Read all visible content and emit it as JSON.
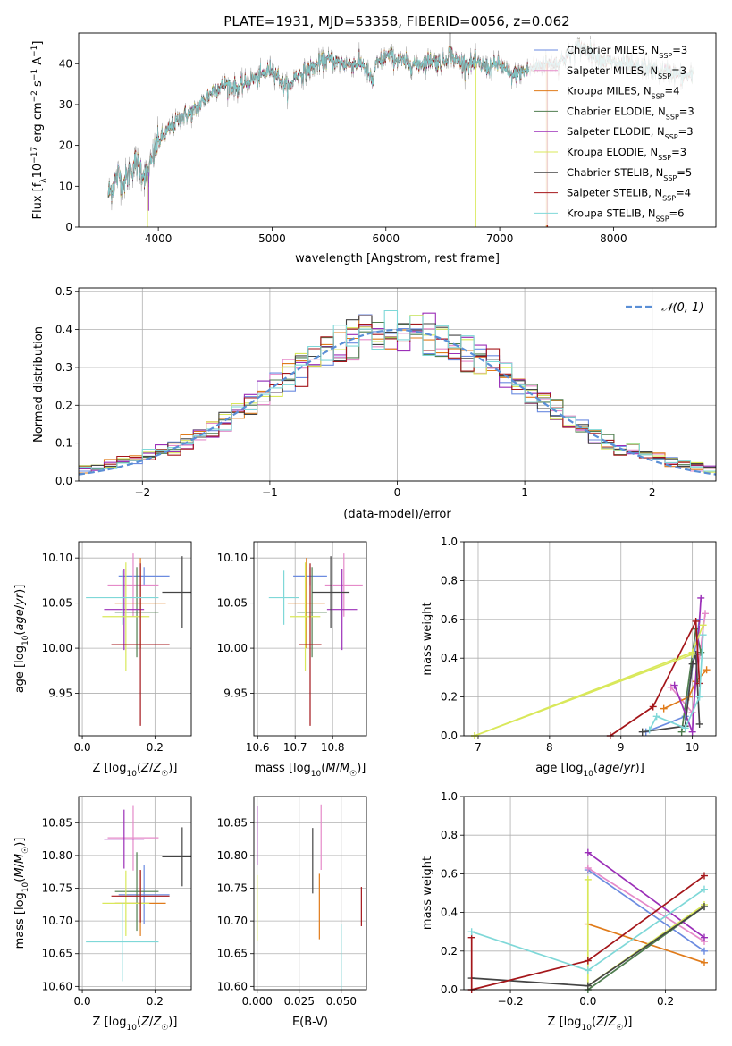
{
  "figure": {
    "title": "PLATE=1931, MJD=53358, FIBERID=0056, z=0.062"
  },
  "colors": {
    "Chabrier MILES": "#6b8be0",
    "Salpeter MILES": "#e58ac9",
    "Kroupa MILES": "#e07b1a",
    "Chabrier ELODIE": "#4f7d4f",
    "Salpeter ELODIE": "#9b2fb8",
    "Kroupa ELODIE": "#d9e85a",
    "Chabrier STELIB": "#444444",
    "Salpeter STELIB": "#a4161a",
    "Kroupa STELIB": "#7fd8d8",
    "gaussian": "#5a8fd6",
    "data": "#aaaaaa"
  },
  "chart_data": [
    {
      "id": "spectrum",
      "type": "line",
      "xlabel": "wavelength [Angstrom, rest frame]",
      "ylabel": "Flux [f_λ 10^-17 erg cm^-2 s^-1 A^-1]",
      "xlim": [
        3300,
        8900
      ],
      "ylim": [
        0,
        47.5
      ],
      "xticks": [
        4000,
        5000,
        6000,
        7000,
        8000
      ],
      "yticks": [
        0,
        10,
        20,
        30,
        40
      ],
      "grid": false,
      "legend_position": "right",
      "anchors": {
        "x": [
          3560,
          3600,
          3650,
          3700,
          3800,
          3850,
          3900,
          3950,
          4000,
          4100,
          4200,
          4300,
          4400,
          4500,
          4600,
          4700,
          4800,
          4900,
          5000,
          5100,
          5150,
          5200,
          5300,
          5400,
          5500,
          5600,
          5700,
          5800,
          5890,
          5900,
          6000,
          6100,
          6200,
          6300,
          6400,
          6500,
          6563,
          6600,
          6700,
          6800,
          6900,
          7000,
          7100,
          7200,
          7300,
          7400,
          7500,
          7600,
          7700,
          7800,
          7900,
          8000,
          8100,
          8200,
          8300,
          8400,
          8500,
          8600,
          8700
        ],
        "y": [
          8,
          10,
          13,
          11,
          16,
          14,
          12,
          17,
          21,
          24,
          27,
          28,
          31,
          34,
          35,
          34,
          36,
          37,
          39,
          35,
          34,
          37,
          38,
          40,
          41,
          40,
          40,
          40,
          35,
          39,
          42,
          41,
          40,
          40,
          41,
          40,
          43,
          41,
          40,
          40,
          39,
          40,
          37,
          38,
          39,
          40,
          40,
          42,
          44,
          43,
          41,
          40,
          40,
          39,
          39,
          38,
          38,
          37,
          37
        ]
      },
      "spikes": [
        {
          "series": "Kroupa ELODIE",
          "x": 3905,
          "to": 0
        },
        {
          "series": "Salpeter ELODIE",
          "x": 3915,
          "to": 4
        },
        {
          "series": "Kroupa ELODIE",
          "x": 6790,
          "to": 0
        },
        {
          "series": "Kroupa MILES",
          "x": 7410,
          "to": 0
        },
        {
          "series": "Salpeter STELIB",
          "x": 7420,
          "to": 0
        }
      ],
      "legend": [
        {
          "label": "Chabrier MILES, N",
          "sub": "SSP",
          "n": "=3",
          "key": "Chabrier MILES"
        },
        {
          "label": "Salpeter MILES, N",
          "sub": "SSP",
          "n": "=3",
          "key": "Salpeter MILES"
        },
        {
          "label": "Kroupa MILES, N",
          "sub": "SSP",
          "n": "=4",
          "key": "Kroupa MILES"
        },
        {
          "label": "Chabrier ELODIE, N",
          "sub": "SSP",
          "n": "=3",
          "key": "Chabrier ELODIE"
        },
        {
          "label": "Salpeter ELODIE, N",
          "sub": "SSP",
          "n": "=3",
          "key": "Salpeter ELODIE"
        },
        {
          "label": "Kroupa ELODIE, N",
          "sub": "SSP",
          "n": "=3",
          "key": "Kroupa ELODIE"
        },
        {
          "label": "Chabrier STELIB, N",
          "sub": "SSP",
          "n": "=5",
          "key": "Chabrier STELIB"
        },
        {
          "label": "Salpeter STELIB, N",
          "sub": "SSP",
          "n": "=4",
          "key": "Salpeter STELIB"
        },
        {
          "label": "Kroupa STELIB, N",
          "sub": "SSP",
          "n": "=6",
          "key": "Kroupa STELIB"
        }
      ]
    },
    {
      "id": "residuals",
      "type": "line",
      "xlabel": "(data-model)/error",
      "ylabel": "Normed distribution",
      "xlim": [
        -2.5,
        2.5
      ],
      "ylim": [
        0,
        0.51
      ],
      "xticks": [
        -2,
        -1,
        0,
        1,
        2
      ],
      "yticks": [
        0.0,
        0.1,
        0.2,
        0.3,
        0.4,
        0.5
      ],
      "grid": true,
      "legend_position": "top-right",
      "gaussian_label": "𝒩(0, 1)",
      "bin_width": 0.1
    },
    {
      "id": "age_vs_Z",
      "type": "scatter",
      "xlabel": "Z [log10(Z/Z☉)]",
      "ylabel": "age [log10(age/yr)]",
      "xlim": [
        -0.01,
        0.3
      ],
      "ylim": [
        9.903,
        10.118
      ],
      "xticks": [
        0.0,
        0.2
      ],
      "yticks": [
        9.95,
        10.0,
        10.05,
        10.1
      ],
      "grid": true,
      "points": [
        {
          "series": "Chabrier MILES",
          "x": 0.17,
          "y": 10.08,
          "xerr": 0.07,
          "yerr": 0.01
        },
        {
          "series": "Salpeter MILES",
          "x": 0.14,
          "y": 10.07,
          "xerr": 0.07,
          "yerr": 0.035
        },
        {
          "series": "Kroupa MILES",
          "x": 0.16,
          "y": 10.05,
          "xerr": 0.07,
          "yerr": 0.05
        },
        {
          "series": "Chabrier ELODIE",
          "x": 0.15,
          "y": 10.04,
          "xerr": 0.06,
          "yerr": 0.05
        },
        {
          "series": "Salpeter ELODIE",
          "x": 0.115,
          "y": 10.043,
          "xerr": 0.055,
          "yerr": 0.045
        },
        {
          "series": "Kroupa ELODIE",
          "x": 0.12,
          "y": 10.035,
          "xerr": 0.065,
          "yerr": 0.06
        },
        {
          "series": "Chabrier STELIB",
          "x": 0.275,
          "y": 10.062,
          "xerr": 0.055,
          "yerr": 0.04
        },
        {
          "series": "Salpeter STELIB",
          "x": 0.16,
          "y": 10.004,
          "xerr": 0.08,
          "yerr": 0.09
        },
        {
          "series": "Kroupa STELIB",
          "x": 0.11,
          "y": 10.056,
          "xerr": 0.1,
          "yerr": 0.03
        }
      ]
    },
    {
      "id": "age_vs_mass",
      "type": "scatter",
      "xlabel": "mass [log10(M/M☉)]",
      "ylabel": "",
      "xlim": [
        10.59,
        10.89
      ],
      "ylim": [
        9.903,
        10.118
      ],
      "xticks": [
        10.6,
        10.7,
        10.8
      ],
      "yticks": [
        9.95,
        10.0,
        10.05,
        10.1
      ],
      "grid": true,
      "points": [
        {
          "series": "Chabrier MILES",
          "x": 10.74,
          "y": 10.08,
          "xerr": 0.045,
          "yerr": 0.01
        },
        {
          "series": "Salpeter MILES",
          "x": 10.83,
          "y": 10.07,
          "xerr": 0.05,
          "yerr": 0.035
        },
        {
          "series": "Kroupa MILES",
          "x": 10.73,
          "y": 10.05,
          "xerr": 0.05,
          "yerr": 0.05
        },
        {
          "series": "Chabrier ELODIE",
          "x": 10.745,
          "y": 10.04,
          "xerr": 0.04,
          "yerr": 0.05
        },
        {
          "series": "Salpeter ELODIE",
          "x": 10.825,
          "y": 10.043,
          "xerr": 0.04,
          "yerr": 0.045
        },
        {
          "series": "Kroupa ELODIE",
          "x": 10.727,
          "y": 10.035,
          "xerr": 0.04,
          "yerr": 0.06
        },
        {
          "series": "Chabrier STELIB",
          "x": 10.795,
          "y": 10.062,
          "xerr": 0.05,
          "yerr": 0.04
        },
        {
          "series": "Salpeter STELIB",
          "x": 10.74,
          "y": 10.004,
          "xerr": 0.03,
          "yerr": 0.09
        },
        {
          "series": "Kroupa STELIB",
          "x": 10.67,
          "y": 10.056,
          "xerr": 0.04,
          "yerr": 0.03
        }
      ]
    },
    {
      "id": "weight_vs_age",
      "type": "line",
      "xlabel": "age [log10(age/yr)]",
      "ylabel": "mass weight",
      "xlim": [
        6.8,
        10.33
      ],
      "ylim": [
        0,
        1
      ],
      "xticks": [
        7,
        8,
        9,
        10
      ],
      "yticks": [
        0.0,
        0.2,
        0.4,
        0.6,
        0.8,
        1.0
      ],
      "grid": true,
      "series": [
        {
          "series": "Chabrier MILES",
          "x": [
            9.35,
            9.9,
            10.1
          ],
          "y": [
            0.02,
            0.1,
            0.6
          ]
        },
        {
          "series": "Salpeter MILES",
          "x": [
            9.7,
            10.0,
            10.18
          ],
          "y": [
            0.25,
            0.12,
            0.63
          ]
        },
        {
          "series": "Kroupa MILES",
          "x": [
            9.6,
            9.95,
            10.05,
            10.2
          ],
          "y": [
            0.14,
            0.2,
            0.28,
            0.34
          ]
        },
        {
          "series": "Chabrier ELODIE",
          "x": [
            9.85,
            10.05,
            10.12
          ],
          "y": [
            0.02,
            0.55,
            0.43
          ]
        },
        {
          "series": "Salpeter ELODIE",
          "x": [
            9.75,
            10.0,
            10.12
          ],
          "y": [
            0.26,
            0.02,
            0.71
          ]
        },
        {
          "series": "Kroupa ELODIE",
          "x": [
            6.95,
            10.0,
            10.15
          ],
          "y": [
            0.0,
            0.43,
            0.57
          ]
        },
        {
          "series": "Chabrier STELIB",
          "x": [
            9.3,
            9.9,
            10.0,
            10.05,
            10.1
          ],
          "y": [
            0.02,
            0.05,
            0.37,
            0.42,
            0.06
          ]
        },
        {
          "series": "Salpeter STELIB",
          "x": [
            8.85,
            9.45,
            10.05,
            10.1
          ],
          "y": [
            0.0,
            0.15,
            0.59,
            0.27
          ]
        },
        {
          "series": "Kroupa STELIB",
          "x": [
            9.4,
            9.5,
            9.9,
            10.1,
            10.15
          ],
          "y": [
            0.03,
            0.1,
            0.04,
            0.2,
            0.52
          ]
        },
        {
          "series": "Kroupa ELODIE",
          "x": [
            6.95,
            10.0
          ],
          "y": [
            0.0,
            0.42
          ]
        }
      ]
    },
    {
      "id": "mass_vs_Z",
      "type": "scatter",
      "xlabel": "Z [log10(Z/Z☉)]",
      "ylabel": "mass [log10(M/M☉)]",
      "xlim": [
        -0.01,
        0.3
      ],
      "ylim": [
        10.595,
        10.89
      ],
      "xticks": [
        0.0,
        0.2
      ],
      "yticks": [
        10.6,
        10.65,
        10.7,
        10.75,
        10.8,
        10.85
      ],
      "grid": true,
      "points": [
        {
          "series": "Chabrier MILES",
          "x": 0.17,
          "y": 10.74,
          "xerr": 0.07,
          "yerr": 0.045
        },
        {
          "series": "Salpeter MILES",
          "x": 0.14,
          "y": 10.827,
          "xerr": 0.07,
          "yerr": 0.05
        },
        {
          "series": "Kroupa MILES",
          "x": 0.16,
          "y": 10.727,
          "xerr": 0.07,
          "yerr": 0.05
        },
        {
          "series": "Chabrier ELODIE",
          "x": 0.15,
          "y": 10.745,
          "xerr": 0.06,
          "yerr": 0.06
        },
        {
          "series": "Salpeter ELODIE",
          "x": 0.115,
          "y": 10.825,
          "xerr": 0.055,
          "yerr": 0.045
        },
        {
          "series": "Kroupa ELODIE",
          "x": 0.12,
          "y": 10.727,
          "xerr": 0.065,
          "yerr": 0.05
        },
        {
          "series": "Chabrier STELIB",
          "x": 0.275,
          "y": 10.798,
          "xerr": 0.055,
          "yerr": 0.045
        },
        {
          "series": "Salpeter STELIB",
          "x": 0.16,
          "y": 10.738,
          "xerr": 0.08,
          "yerr": 0.04
        },
        {
          "series": "Kroupa STELIB",
          "x": 0.11,
          "y": 10.668,
          "xerr": 0.1,
          "yerr": 0.06
        }
      ]
    },
    {
      "id": "mass_vs_ebv",
      "type": "scatter",
      "xlabel": "E(B-V)",
      "ylabel": "",
      "xlim": [
        -0.002,
        0.065
      ],
      "ylim": [
        10.595,
        10.89
      ],
      "xticks": [
        0.0,
        0.025,
        0.05
      ],
      "yticks": [
        10.6,
        10.65,
        10.7,
        10.75,
        10.8,
        10.85
      ],
      "grid": true,
      "points": [
        {
          "series": "Salpeter ELODIE",
          "x": 0.0,
          "y": 10.83,
          "xerr": 0,
          "yerr": 0.045
        },
        {
          "series": "Kroupa ELODIE",
          "x": 0.0,
          "y": 10.72,
          "xerr": 0,
          "yerr": 0.05
        },
        {
          "series": "Chabrier STELIB",
          "x": 0.033,
          "y": 10.792,
          "xerr": 0,
          "yerr": 0.05
        },
        {
          "series": "Salpeter MILES",
          "x": 0.038,
          "y": 10.828,
          "xerr": 0,
          "yerr": 0.05
        },
        {
          "series": "Kroupa MILES",
          "x": 0.037,
          "y": 10.722,
          "xerr": 0,
          "yerr": 0.05
        },
        {
          "series": "Kroupa STELIB",
          "x": 0.05,
          "y": 10.645,
          "xerr": 0,
          "yerr": 0.05
        },
        {
          "series": "Salpeter STELIB",
          "x": 0.062,
          "y": 10.722,
          "xerr": 0,
          "yerr": 0.03
        }
      ]
    },
    {
      "id": "weight_vs_Z",
      "type": "line",
      "xlabel": "Z [log10(Z/Z☉)]",
      "ylabel": "mass weight",
      "xlim": [
        -0.32,
        0.33
      ],
      "ylim": [
        0,
        1
      ],
      "xticks": [
        -0.2,
        0.0,
        0.2
      ],
      "yticks": [
        0.0,
        0.2,
        0.4,
        0.6,
        0.8,
        1.0
      ],
      "grid": true,
      "series": [
        {
          "series": "Chabrier MILES",
          "x": [
            0.0,
            0.3
          ],
          "y": [
            0.62,
            0.2
          ]
        },
        {
          "series": "Salpeter MILES",
          "x": [
            0.0,
            0.3
          ],
          "y": [
            0.63,
            0.25
          ]
        },
        {
          "series": "Kroupa MILES",
          "x": [
            0.0,
            0.3
          ],
          "y": [
            0.34,
            0.14
          ]
        },
        {
          "series": "Chabrier ELODIE",
          "x": [
            0.0,
            0.3
          ],
          "y": [
            0.0,
            0.43
          ]
        },
        {
          "series": "Salpeter ELODIE",
          "x": [
            0.0,
            0.3
          ],
          "y": [
            0.71,
            0.27
          ]
        },
        {
          "series": "Kroupa ELODIE",
          "x": [
            0.0,
            0.0,
            0.3
          ],
          "y": [
            0.57,
            0.02,
            0.44
          ]
        },
        {
          "series": "Chabrier STELIB",
          "x": [
            -0.3,
            0.0,
            0.3
          ],
          "y": [
            0.06,
            0.02,
            0.43
          ]
        },
        {
          "series": "Salpeter STELIB",
          "x": [
            -0.3,
            -0.3,
            0.0,
            0.3
          ],
          "y": [
            0.27,
            0.0,
            0.15,
            0.59
          ]
        },
        {
          "series": "Kroupa STELIB",
          "x": [
            -0.3,
            0.0,
            0.3
          ],
          "y": [
            0.3,
            0.1,
            0.52
          ]
        }
      ]
    }
  ]
}
